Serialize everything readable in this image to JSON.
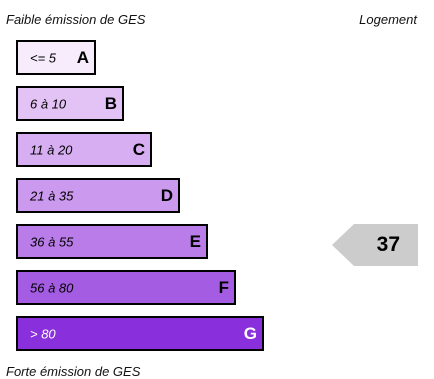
{
  "header": {
    "low_label": "Faible émission de GES",
    "type_label": "Logement"
  },
  "footer": {
    "high_label": "Forte émission de GES"
  },
  "bands": [
    {
      "range": "<= 5",
      "grade": "A",
      "color": "#f6ecfc",
      "text_color": "#000000"
    },
    {
      "range": "6 à 10",
      "grade": "B",
      "color": "#e3c3f5",
      "text_color": "#000000"
    },
    {
      "range": "11 à 20",
      "grade": "C",
      "color": "#d7aef2",
      "text_color": "#000000"
    },
    {
      "range": "21 à 35",
      "grade": "D",
      "color": "#cb99ee",
      "text_color": "#000000"
    },
    {
      "range": "36 à 55",
      "grade": "E",
      "color": "#b97ce8",
      "text_color": "#000000"
    },
    {
      "range": "56 à 80",
      "grade": "F",
      "color": "#a45ce2",
      "text_color": "#000000"
    },
    {
      "range": "> 80",
      "grade": "G",
      "color": "#8a2fdc",
      "text_color": "#ffffff"
    }
  ],
  "current": {
    "value": "37",
    "grade": "E",
    "marker_color": "#cccccc"
  }
}
